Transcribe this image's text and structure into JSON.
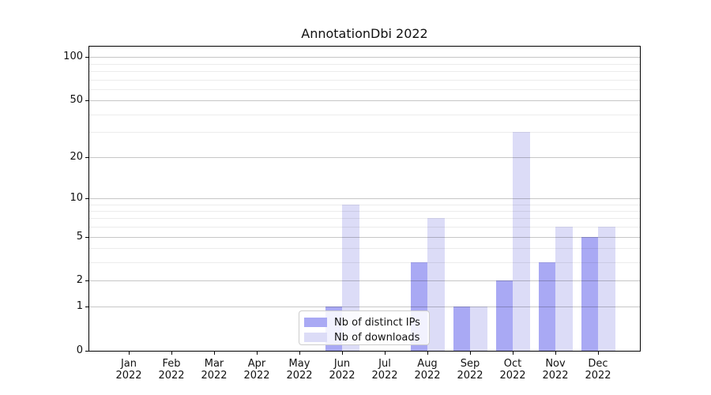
{
  "chart_data": {
    "type": "bar",
    "title": "AnnotationDbi 2022",
    "categories": [
      "Jan",
      "Feb",
      "Mar",
      "Apr",
      "May",
      "Jun",
      "Jul",
      "Aug",
      "Sep",
      "Oct",
      "Nov",
      "Dec"
    ],
    "year_label": "2022",
    "series": [
      {
        "name": "Nb of distinct IPs",
        "color": "#a9a9f4",
        "values": [
          0,
          0,
          0,
          0,
          0,
          1,
          0,
          3,
          1,
          2,
          3,
          5
        ]
      },
      {
        "name": "Nb of downloads",
        "color": "#dcdcf7",
        "values": [
          0,
          0,
          0,
          0,
          0,
          9,
          0,
          7,
          1,
          30,
          6,
          6
        ]
      }
    ],
    "yscale": "log1p",
    "ylim": [
      0,
      118
    ],
    "yticks_major": [
      0,
      1,
      2,
      5,
      10,
      20,
      50,
      100
    ],
    "yticks_minor": [
      3,
      4,
      6,
      7,
      8,
      9,
      30,
      40,
      60,
      70,
      80,
      90
    ],
    "grid": "horizontal",
    "legend_position": "bottom-center"
  },
  "colors": {
    "grid_major": "#c6c6c6",
    "grid_minor": "#ececec",
    "axis": "#000000",
    "background": "#ffffff"
  }
}
